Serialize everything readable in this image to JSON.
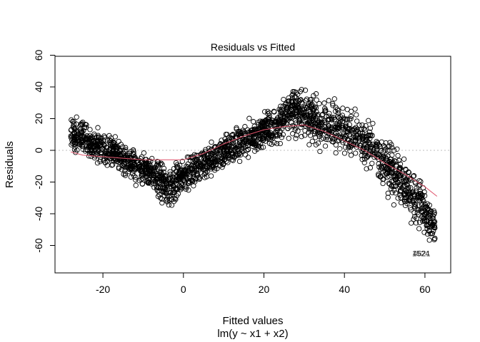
{
  "chart_data": {
    "type": "scatter",
    "title": "Residuals vs Fitted",
    "xlabel": "Fitted values",
    "subtitle": "lm(y ~ x1 + x2)",
    "ylabel": "Residuals",
    "xlim": [
      -31,
      66
    ],
    "ylim": [
      -78,
      60
    ],
    "x_ticks": [
      -20,
      0,
      20,
      40,
      60
    ],
    "y_ticks": [
      -60,
      -40,
      -20,
      0,
      20,
      40,
      60
    ],
    "reference_line": {
      "y": 0,
      "style": "dotted",
      "color": "#bebebe"
    },
    "point_style": {
      "shape": "open-circle",
      "color": "#000000"
    },
    "point_band": {
      "x": [
        -28,
        -25,
        -20,
        -15,
        -10,
        -6,
        -4,
        0,
        5,
        10,
        15,
        20,
        25,
        27,
        30,
        35,
        40,
        45,
        50,
        55,
        58,
        60,
        62.5
      ],
      "y_lower": [
        -3,
        -8,
        -12,
        -18,
        -26,
        -33,
        -39,
        -30,
        -22,
        -13,
        -8,
        -2,
        3,
        5,
        2,
        -4,
        -8,
        -16,
        -30,
        -45,
        -52,
        -58,
        -62
      ],
      "y_upper": [
        27,
        22,
        15,
        8,
        2,
        -2,
        -10,
        0,
        5,
        12,
        20,
        27,
        36,
        45,
        42,
        37,
        33,
        26,
        16,
        0,
        -10,
        -20,
        -36
      ]
    },
    "smoother": {
      "color": "#df536b",
      "x": [
        -28,
        -25,
        -20,
        -15,
        -10,
        -6,
        -3,
        0,
        5,
        10,
        15,
        20,
        25,
        30,
        35,
        40,
        45,
        50,
        55,
        60,
        63
      ],
      "y": [
        -1,
        -3,
        -4,
        -5,
        -6,
        -6,
        -6,
        -6,
        -2,
        4,
        9,
        13,
        15,
        16,
        12,
        6,
        0,
        -8,
        -15,
        -23,
        -29
      ]
    },
    "outlier_labels": [
      {
        "text": "1524",
        "x": 59,
        "y": -65
      },
      {
        "text": "4621",
        "x": 59,
        "y": -65
      }
    ]
  }
}
